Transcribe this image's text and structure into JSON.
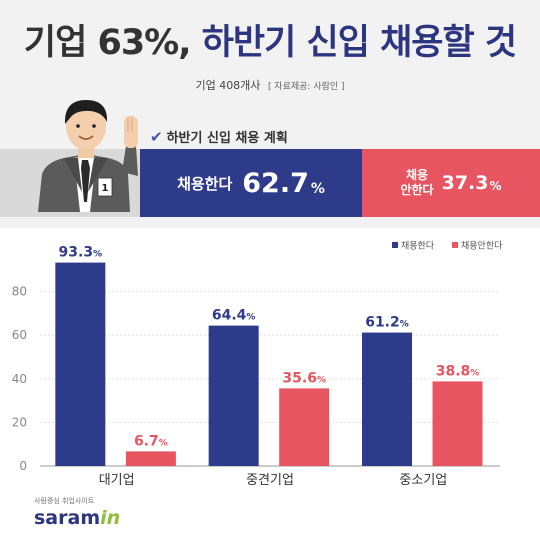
{
  "title": {
    "part1": "기업 63%,",
    "part2": "하반기 신입 채용할 것"
  },
  "subtitle": {
    "sample": "기업 408개사",
    "source": "[ 자료제공: 사람인 ]"
  },
  "figure": {
    "badge_text": "1"
  },
  "plan": {
    "header": "하반기 신입 채용 계획",
    "yes_label": "채용한다",
    "yes_value": "62.7",
    "no_label_line1": "채용",
    "no_label_line2": "안한다",
    "no_value": "37.3",
    "pct_sign": "%"
  },
  "colors": {
    "navy": "#2e3a8a",
    "red": "#e75560",
    "title_navy": "#2c3580",
    "brand_green": "#8fbe3a"
  },
  "chart_data": {
    "type": "bar",
    "categories": [
      "대기업",
      "중견기업",
      "중소기업"
    ],
    "series": [
      {
        "name": "채용한다",
        "values": [
          93.3,
          64.4,
          61.2
        ],
        "color": "#2e3a8a"
      },
      {
        "name": "채용안한다",
        "values": [
          6.7,
          35.6,
          38.8
        ],
        "color": "#e75560"
      }
    ],
    "ylim": [
      0,
      100
    ],
    "yticks": [
      0,
      20,
      40,
      60,
      80
    ],
    "value_suffix": "%",
    "legend_position": "top-right",
    "grid": true
  },
  "brand": {
    "tagline": "사람중심 취업사이트",
    "name_main": "saram",
    "name_accent": "in"
  }
}
